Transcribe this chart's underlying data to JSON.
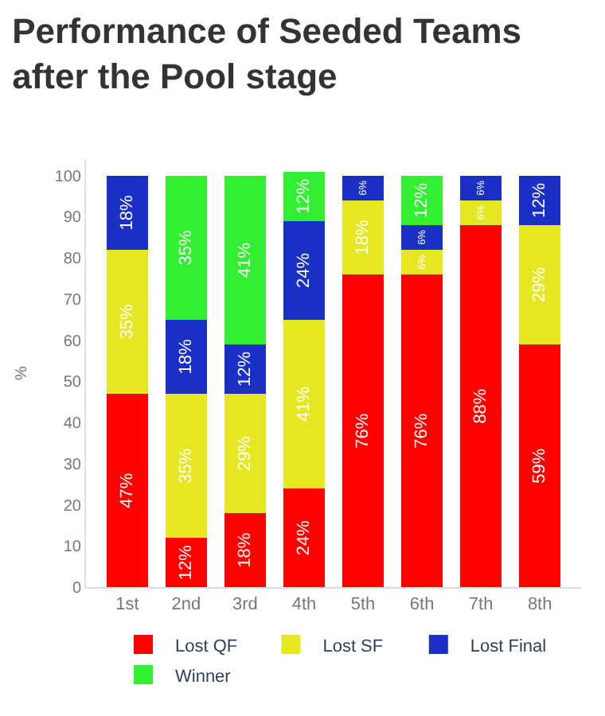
{
  "chart_data": {
    "type": "bar",
    "title": "Performance of Seeded Teams\nafter the Pool stage",
    "ylabel": "%",
    "stacked": true,
    "categories": [
      "1st",
      "2nd",
      "3rd",
      "4th",
      "5th",
      "6th",
      "7th",
      "8th"
    ],
    "series": [
      {
        "name": "Lost QF",
        "color": "#ff0000",
        "values": [
          47,
          12,
          18,
          24,
          76,
          76,
          88,
          59
        ],
        "value_labels": [
          "47%",
          "12%",
          "18%",
          "24%",
          "76%",
          "76%",
          "88%",
          "59%"
        ]
      },
      {
        "name": "Lost SF",
        "color": "#e6e622",
        "values": [
          35,
          35,
          29,
          41,
          18,
          6,
          6,
          29
        ],
        "value_labels": [
          "35%",
          "35%",
          "29%",
          "41%",
          "18%",
          "6%",
          "6%",
          "29%"
        ]
      },
      {
        "name": "Lost Final",
        "color": "#1a2fc4",
        "values": [
          18,
          18,
          12,
          24,
          6,
          6,
          6,
          12
        ],
        "value_labels": [
          "18%",
          "18%",
          "12%",
          "24%",
          "6%",
          "6%",
          "6%",
          "12%"
        ]
      },
      {
        "name": "Winner",
        "color": "#33ee33",
        "values": [
          null,
          35,
          41,
          12,
          null,
          12,
          null,
          null
        ],
        "value_labels": [
          null,
          "35%",
          "41%",
          "12%",
          null,
          "12%",
          null,
          null
        ]
      }
    ],
    "ylim": [
      0,
      104
    ],
    "yticks": [
      0,
      10,
      20,
      30,
      40,
      50,
      60,
      70,
      80,
      90,
      100
    ],
    "legend": "bottom"
  }
}
